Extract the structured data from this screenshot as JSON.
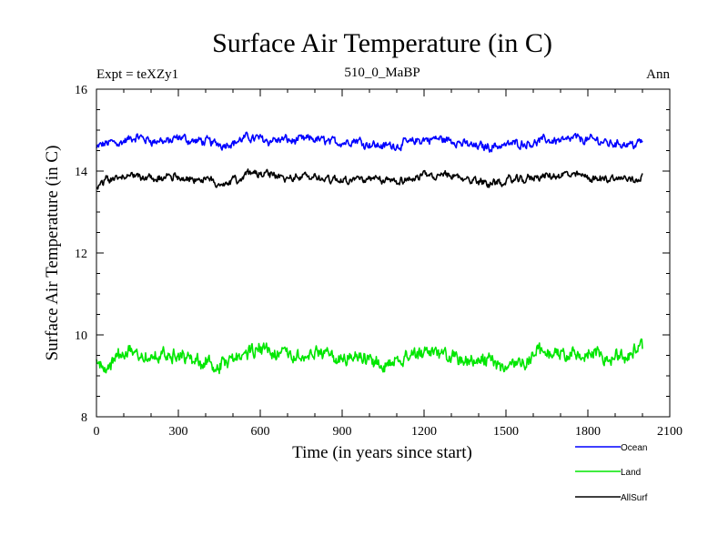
{
  "chart_data": {
    "type": "line",
    "title": "Surface Air Temperature (in C)",
    "subtitle": "510_0_MaBP",
    "experiment_label": "Expt = teXZy1",
    "season_label": "Ann",
    "xlabel": "Time (in years since start)",
    "ylabel": "Surface Air Temperature (in C)",
    "xlim": [
      0,
      2100
    ],
    "ylim": [
      8,
      16
    ],
    "x_ticks": [
      0,
      300,
      600,
      900,
      1200,
      1500,
      1800,
      2100
    ],
    "y_ticks": [
      8,
      10,
      12,
      14,
      16
    ],
    "grid": false,
    "legend_position": "bottom-right",
    "series": [
      {
        "name": "Ocean",
        "color": "#0000ff",
        "x_range": [
          0,
          2000
        ],
        "samples": [
          14.55,
          14.7,
          14.75,
          14.78,
          14.75,
          14.72,
          14.76,
          14.74,
          14.7,
          14.68,
          14.72,
          14.8,
          14.82,
          14.78,
          14.75,
          14.74,
          14.76,
          14.73,
          14.72,
          14.76,
          14.7,
          14.62,
          14.64,
          14.7,
          14.75,
          14.78,
          14.74,
          14.66,
          14.6,
          14.62,
          14.66,
          14.7,
          14.72,
          14.74,
          14.78,
          14.8,
          14.76,
          14.72,
          14.7,
          14.68,
          14.72
        ],
        "noise": 0.11
      },
      {
        "name": "Land",
        "color": "#00e600",
        "x_range": [
          0,
          2000
        ],
        "samples": [
          9.25,
          9.3,
          9.55,
          9.55,
          9.5,
          9.5,
          9.6,
          9.4,
          9.25,
          9.2,
          9.35,
          9.55,
          9.7,
          9.6,
          9.45,
          9.45,
          9.55,
          9.5,
          9.45,
          9.55,
          9.35,
          9.3,
          9.4,
          9.55,
          9.65,
          9.55,
          9.5,
          9.45,
          9.4,
          9.3,
          9.25,
          9.35,
          9.5,
          9.55,
          9.5,
          9.6,
          9.55,
          9.5,
          9.55,
          9.6,
          9.7
        ],
        "noise": 0.18
      },
      {
        "name": "AllSurf",
        "color": "#000000",
        "x_range": [
          0,
          2000
        ],
        "samples": [
          13.65,
          13.8,
          13.88,
          13.87,
          13.85,
          13.85,
          13.9,
          13.83,
          13.75,
          13.72,
          13.78,
          13.92,
          13.98,
          13.92,
          13.85,
          13.84,
          13.87,
          13.83,
          13.82,
          13.87,
          13.78,
          13.72,
          13.76,
          13.84,
          13.9,
          13.88,
          13.84,
          13.78,
          13.73,
          13.72,
          13.75,
          13.8,
          13.84,
          13.86,
          13.86,
          13.9,
          13.87,
          13.83,
          13.83,
          13.83,
          13.9
        ],
        "noise": 0.1
      }
    ]
  }
}
